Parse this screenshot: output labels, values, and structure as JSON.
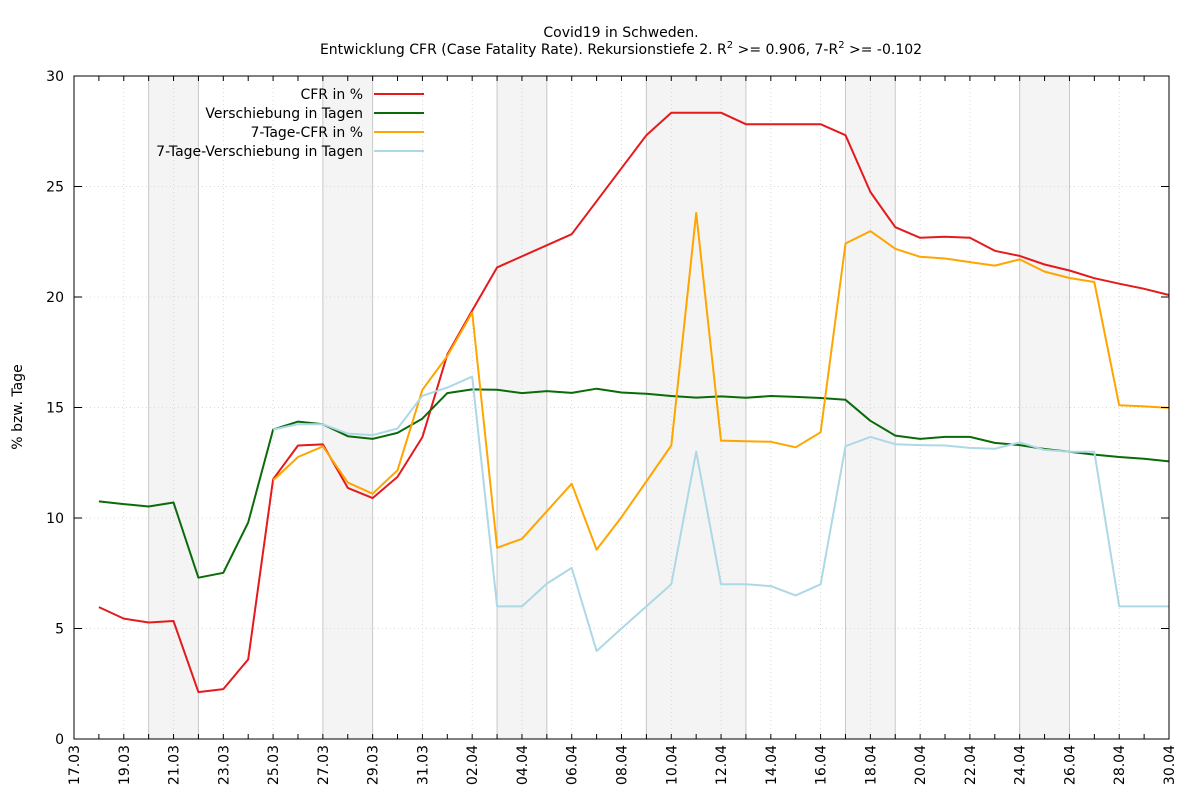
{
  "chart_data": {
    "type": "line",
    "title": "Covid19 in Schweden.",
    "subtitle": {
      "prefix": "Entwicklung CFR (Case Fatality Rate). Rekursionstiefe 2. R",
      "sup1": "2",
      "middle": " >= 0.906, 7-R",
      "sup2": "2",
      "suffix": " >= -0.102"
    },
    "ylabel": "% bzw. Tage",
    "ylim": [
      0,
      30
    ],
    "yticks": [
      "0",
      "5",
      "10",
      "15",
      "20",
      "25",
      "30"
    ],
    "x_range": [
      "17.03",
      "30.04"
    ],
    "xticks": [
      "17.03",
      "19.03",
      "21.03",
      "23.03",
      "25.03",
      "27.03",
      "29.03",
      "31.03",
      "02.04",
      "04.04",
      "06.04",
      "08.04",
      "10.04",
      "12.04",
      "14.04",
      "16.04",
      "18.04",
      "20.04",
      "22.04",
      "24.04",
      "26.04",
      "28.04",
      "30.04"
    ],
    "grid": true,
    "legend_position": "top-left",
    "weekend_bands": [
      [
        "20.03",
        "22.03"
      ],
      [
        "27.03",
        "29.03"
      ],
      [
        "03.04",
        "05.04"
      ],
      [
        "09.04",
        "13.04"
      ],
      [
        "17.04",
        "19.04"
      ],
      [
        "24.04",
        "26.04"
      ]
    ],
    "x": [
      "18.03",
      "19.03",
      "20.03",
      "21.03",
      "22.03",
      "23.03",
      "24.03",
      "25.03",
      "26.03",
      "27.03",
      "28.03",
      "29.03",
      "30.03",
      "31.03",
      "01.04",
      "02.04",
      "03.04",
      "04.04",
      "05.04",
      "06.04",
      "07.04",
      "08.04",
      "09.04",
      "10.04",
      "11.04",
      "12.04",
      "13.04",
      "14.04",
      "15.04",
      "16.04",
      "17.04",
      "18.04",
      "19.04",
      "20.04",
      "21.04",
      "22.04",
      "23.04",
      "24.04",
      "25.04",
      "26.04",
      "27.04",
      "28.04",
      "29.04",
      "30.04"
    ],
    "series": [
      {
        "name": "CFR in %",
        "color": "#e41a1c",
        "values": [
          5.97,
          5.45,
          5.27,
          5.34,
          2.12,
          2.26,
          3.6,
          11.75,
          13.28,
          13.33,
          11.36,
          10.9,
          11.86,
          13.66,
          17.4,
          19.39,
          21.34,
          null,
          null,
          22.84,
          null,
          null,
          27.32,
          28.34,
          28.34,
          28.34,
          27.82,
          27.82,
          27.82,
          27.82,
          27.32,
          24.75,
          23.16,
          22.68,
          22.73,
          22.68,
          22.09,
          21.86,
          21.47,
          21.2,
          20.85,
          20.6,
          20.37,
          20.09
        ]
      },
      {
        "name": "Verschiebung in Tagen",
        "color": "#0a6b0a",
        "values": [
          10.75,
          10.63,
          10.52,
          10.7,
          7.3,
          7.52,
          9.8,
          14.0,
          14.36,
          14.24,
          13.7,
          13.58,
          13.85,
          14.5,
          15.65,
          15.82,
          15.8,
          15.65,
          15.74,
          15.66,
          15.85,
          15.68,
          15.62,
          15.52,
          15.45,
          15.5,
          15.44,
          15.52,
          15.48,
          15.43,
          15.35,
          14.4,
          13.73,
          13.58,
          13.67,
          13.67,
          13.4,
          13.3,
          13.12,
          13.0,
          12.87,
          12.76,
          12.68,
          12.56
        ]
      },
      {
        "name": "7-Tage-CFR in %",
        "color": "#ffa500",
        "values": [
          null,
          null,
          null,
          null,
          null,
          null,
          null,
          11.7,
          12.76,
          13.24,
          11.6,
          11.1,
          12.16,
          15.8,
          17.33,
          19.3,
          8.65,
          9.06,
          null,
          11.55,
          8.57,
          10.04,
          null,
          13.28,
          23.8,
          13.5,
          13.47,
          13.45,
          13.2,
          13.88,
          22.42,
          22.98,
          22.18,
          21.82,
          21.74,
          21.58,
          21.42,
          21.7,
          21.15,
          20.86,
          20.68,
          15.1,
          15.05,
          14.98
        ]
      },
      {
        "name": "7-Tage-Verschiebung in Tagen",
        "color": "#add8e6",
        "values": [
          null,
          null,
          null,
          null,
          null,
          null,
          null,
          14.0,
          14.25,
          14.24,
          13.82,
          13.75,
          14.05,
          15.53,
          15.9,
          16.4,
          6.0,
          6.0,
          7.03,
          7.74,
          3.98,
          5.0,
          6.0,
          7.0,
          13.0,
          7.0,
          7.0,
          6.92,
          6.5,
          7.0,
          13.25,
          13.67,
          13.34,
          13.3,
          13.28,
          13.17,
          13.13,
          13.42,
          13.08,
          13.0,
          13.0,
          6.0,
          6.0,
          6.0
        ]
      }
    ]
  }
}
